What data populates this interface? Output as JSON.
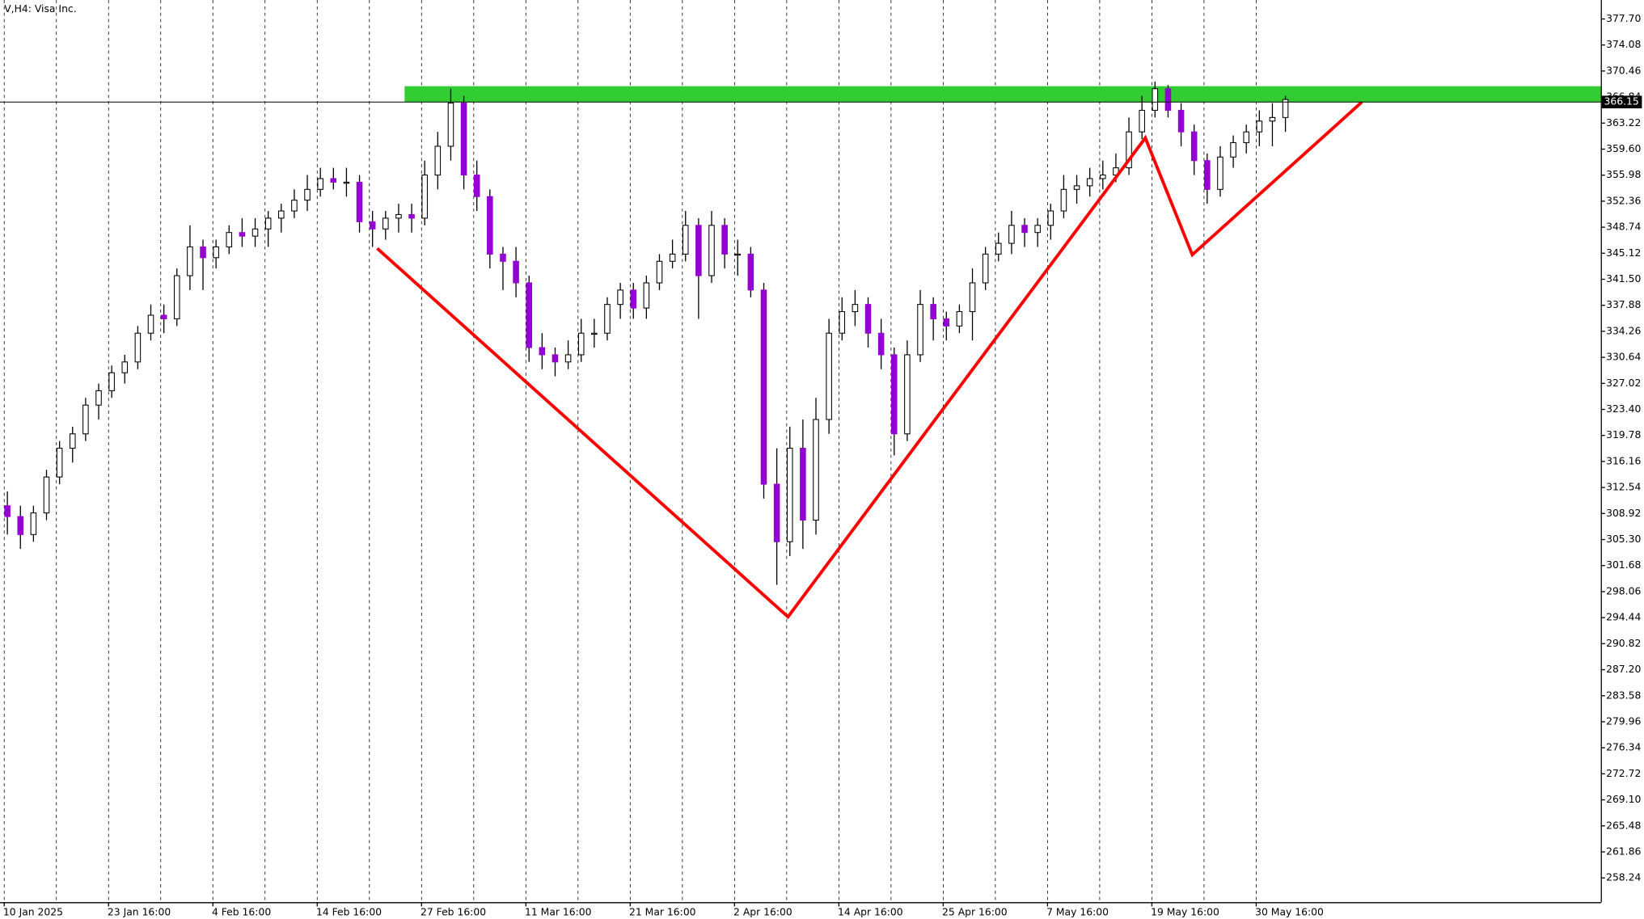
{
  "chart_data": {
    "type": "candlestick",
    "title": "V,H4:  Visa Inc.",
    "categories": [
      "10 Jan 2025",
      null,
      null,
      null,
      null,
      null,
      null,
      null,
      "23 Jan 16:00",
      null,
      null,
      null,
      null,
      null,
      null,
      null,
      "4 Feb 16:00",
      null,
      null,
      null,
      null,
      null,
      null,
      null,
      "14 Feb 16:00",
      null,
      null,
      null,
      null,
      null,
      null,
      null,
      "27 Feb 16:00",
      null,
      null,
      null,
      null,
      null,
      null,
      null,
      "11 Mar 16:00",
      null,
      null,
      null,
      null,
      null,
      null,
      null,
      "21 Mar 16:00",
      null,
      null,
      null,
      null,
      null,
      null,
      null,
      "2 Apr 16:00",
      null,
      null,
      null,
      null,
      null,
      null,
      null,
      "14 Apr 16:00",
      null,
      null,
      null,
      null,
      null,
      null,
      null,
      "25 Apr 16:00",
      null,
      null,
      null,
      null,
      null,
      null,
      null,
      "7 May 16:00",
      null,
      null,
      null,
      null,
      null,
      null,
      null,
      "19 May 16:00",
      null,
      null,
      null,
      null,
      null,
      null,
      null,
      "30 May 16:00",
      null,
      null
    ],
    "open": [
      310,
      308.5,
      306,
      309,
      314,
      318,
      320,
      324,
      326,
      328.5,
      330,
      334,
      336.5,
      336,
      342,
      346,
      344.5,
      346,
      348,
      347.5,
      348.5,
      350,
      351,
      352.5,
      354,
      355.5,
      355,
      355,
      349.5,
      348.5,
      350,
      350.5,
      350,
      356,
      360,
      366,
      356,
      353,
      345,
      344,
      341,
      332,
      331,
      330,
      331,
      334,
      334,
      338,
      340,
      337.5,
      341,
      344,
      345,
      349,
      342,
      349,
      345,
      345,
      340,
      313,
      305,
      318,
      308,
      322,
      334,
      337,
      338,
      334,
      331,
      320,
      331,
      338,
      336,
      335,
      337,
      341,
      345,
      346.5,
      349,
      348,
      349,
      351,
      354,
      354.5,
      355.5,
      356,
      357,
      362,
      365,
      368,
      365,
      362,
      358,
      354,
      358.5,
      360.5,
      362,
      363.5,
      364
    ],
    "high": [
      312,
      310,
      310,
      315,
      319,
      321,
      325,
      327,
      329.5,
      331,
      335,
      338,
      338,
      343,
      349,
      347,
      347,
      349,
      350,
      350,
      351,
      352,
      354,
      356,
      357,
      357,
      357,
      356,
      351,
      351,
      352,
      352,
      358,
      362,
      368,
      367,
      358,
      354,
      346,
      346,
      342,
      334,
      332,
      333,
      336,
      336,
      339,
      341,
      341,
      342,
      345,
      347,
      351,
      350,
      351,
      350,
      347,
      346,
      341,
      318,
      321,
      322,
      325,
      336,
      339,
      340,
      339,
      336,
      332,
      333,
      340,
      339,
      337,
      338,
      343,
      346,
      348,
      351,
      350,
      350,
      352,
      356,
      356,
      357,
      358,
      359,
      364,
      367,
      369,
      368.5,
      366,
      363,
      359,
      360,
      361.5,
      363,
      365,
      366,
      367
    ],
    "low": [
      306,
      304,
      305,
      308,
      313,
      316,
      319,
      322,
      325,
      327,
      329,
      333,
      334,
      335,
      340,
      340,
      343,
      345,
      346,
      346,
      346,
      348,
      350,
      351,
      353,
      354,
      353,
      348,
      346,
      347,
      348,
      348,
      349,
      354,
      358,
      354,
      351,
      343,
      340,
      339,
      330,
      329,
      328,
      329,
      330,
      332,
      333,
      336,
      336,
      336,
      340,
      343,
      344,
      336,
      341,
      343,
      342,
      339,
      311,
      299,
      303,
      304,
      306,
      320,
      333,
      335,
      332,
      329,
      317,
      319,
      330,
      333,
      333,
      334,
      333,
      340,
      344,
      345,
      346,
      346,
      347,
      350,
      352,
      353,
      354,
      355,
      356,
      361,
      364,
      364,
      360,
      356,
      352,
      353,
      357,
      359,
      360,
      360,
      362
    ],
    "close": [
      308.5,
      306,
      309,
      314,
      318,
      320,
      324,
      326,
      328.5,
      330,
      334,
      336.5,
      336,
      342,
      346,
      344.5,
      346,
      348,
      347.5,
      348.5,
      350,
      351,
      352.5,
      354,
      355.5,
      355,
      355,
      349.5,
      348.5,
      350,
      350.5,
      350,
      356,
      360,
      366,
      356,
      353,
      345,
      344,
      341,
      332,
      331,
      330,
      331,
      334,
      334,
      338,
      340,
      337.5,
      341,
      344,
      345,
      349,
      342,
      349,
      345,
      345,
      340,
      313,
      305,
      318,
      308,
      322,
      334,
      337,
      338,
      334,
      331,
      320,
      331,
      338,
      336,
      335,
      337,
      341,
      345,
      346.5,
      349,
      348,
      349,
      351,
      354,
      354.5,
      355.5,
      356,
      357,
      362,
      365,
      368,
      365,
      362,
      358,
      354,
      358.5,
      360.5,
      362,
      363.5,
      364,
      366.5
    ],
    "up_color": "#ffffff",
    "down_color": "#9400d3",
    "ylim": [
      254.87,
      380.34
    ],
    "yticks": [
      {
        "value": 377.7,
        "label": "377.70"
      },
      374.08,
      370.46,
      366.84,
      363.22,
      {
        "value": 359.6,
        "label": "359.60"
      },
      355.98,
      352.36,
      348.74,
      345.12,
      {
        "value": 341.5,
        "label": "341.50"
      },
      337.88,
      334.26,
      330.64,
      327.02,
      {
        "value": 323.4,
        "label": "323.40"
      },
      319.78,
      316.16,
      312.54,
      308.92,
      {
        "value": 305.3,
        "label": "305.30"
      },
      301.68,
      298.06,
      294.44,
      290.82,
      {
        "value": 287.2,
        "label": "287.20"
      },
      283.58,
      279.96,
      276.34,
      272.72,
      {
        "value": 269.1,
        "label": "269.10"
      },
      265.48,
      261.86,
      258.24
    ],
    "last_price": 366.15,
    "resistance_zone": {
      "ylim": [
        366.15,
        368.35
      ],
      "color": "#32cd32"
    },
    "pattern_line": {
      "color": "#ff0000",
      "x": [
        28.6,
        60.1,
        87.5,
        91.1,
        104.1
      ],
      "y": [
        345.79,
        294.55,
        361.16,
        344.91,
        366.14
      ]
    }
  }
}
